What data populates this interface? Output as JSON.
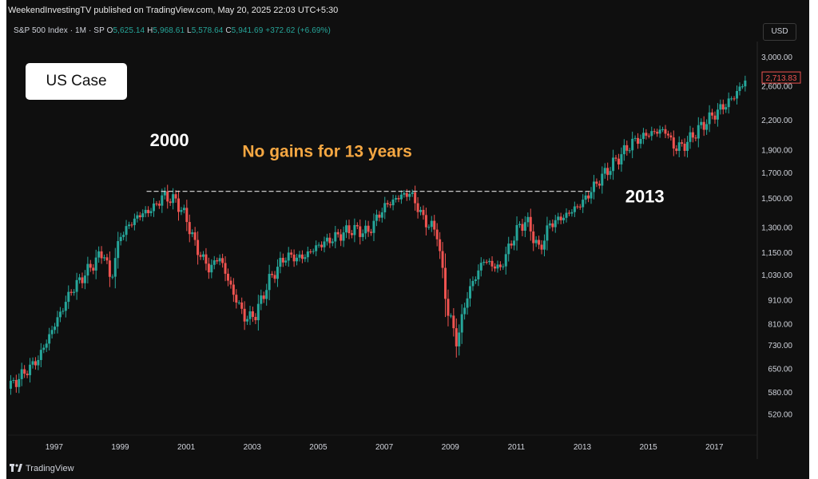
{
  "header": {
    "publisher": "WeekendInvestingTV published on TradingView.com, May 20, 2025 22:03 UTC+5:30",
    "symbol": "S&P 500 Index · 1M · SP",
    "ohlc": {
      "o_label": "O",
      "o": "5,625.14",
      "h_label": "H",
      "h": "5,968.61",
      "l_label": "L",
      "l": "5,578.64",
      "c_label": "C",
      "c": "5,941.69",
      "change": "+372.62 (+6.69%)"
    },
    "currency": "USD"
  },
  "badge": {
    "label": "US Case"
  },
  "footer": {
    "logo_text": "TradingView"
  },
  "colors": {
    "background": "#0f0f0f",
    "up": "#26a69a",
    "down": "#ef5350",
    "annotation": "#f5a742",
    "price_label": "#ef5350",
    "text": "#d1d4dc"
  },
  "chart_data": {
    "type": "candlestick",
    "title": "",
    "xlabel": "",
    "ylabel": "",
    "scale": "log",
    "ylim": [
      470,
      3200
    ],
    "xlim": [
      1995.6,
      2018.3
    ],
    "grid": false,
    "y_ticks": [
      "3,000.00",
      "2,600.00",
      "2,200.00",
      "1,900.00",
      "1,700.00",
      "1,500.00",
      "1,300.00",
      "1,150.00",
      "1,030.00",
      "910.00",
      "810.00",
      "730.00",
      "650.00",
      "580.00",
      "520.00"
    ],
    "x_ticks": [
      "1997",
      "1999",
      "2001",
      "2003",
      "2005",
      "2007",
      "2009",
      "2011",
      "2013",
      "2015",
      "2017"
    ],
    "last_price_label": "2,713.83",
    "last_price": 2713.83,
    "annotations": [
      {
        "text": "2000",
        "x": 1999.9,
        "y": 1940
      },
      {
        "text": "No gains for 13 years",
        "x": 2002.7,
        "y": 1840
      },
      {
        "text": "2013",
        "x": 2014.3,
        "y": 1470
      }
    ],
    "resistance_line": {
      "y": 1553,
      "x_start": 1999.8,
      "x_end": 2013.3
    },
    "anchors": [
      [
        1995.6,
        590
      ],
      [
        1996.5,
        680
      ],
      [
        1997.5,
        950
      ],
      [
        1998.5,
        1160
      ],
      [
        1998.7,
        1000
      ],
      [
        1999.0,
        1250
      ],
      [
        1999.5,
        1370
      ],
      [
        2000.0,
        1430
      ],
      [
        2000.3,
        1520
      ],
      [
        2000.7,
        1480
      ],
      [
        2001.0,
        1360
      ],
      [
        2001.3,
        1180
      ],
      [
        2001.7,
        1060
      ],
      [
        2002.0,
        1130
      ],
      [
        2002.4,
        950
      ],
      [
        2002.8,
        830
      ],
      [
        2003.1,
        850
      ],
      [
        2003.5,
        1000
      ],
      [
        2004.0,
        1130
      ],
      [
        2004.5,
        1120
      ],
      [
        2005.0,
        1190
      ],
      [
        2006.0,
        1290
      ],
      [
        2006.5,
        1270
      ],
      [
        2007.0,
        1440
      ],
      [
        2007.5,
        1520
      ],
      [
        2007.8,
        1540
      ],
      [
        2008.2,
        1350
      ],
      [
        2008.6,
        1270
      ],
      [
        2008.9,
        880
      ],
      [
        2009.2,
        740
      ],
      [
        2009.5,
        930
      ],
      [
        2010.0,
        1110
      ],
      [
        2010.5,
        1060
      ],
      [
        2011.0,
        1280
      ],
      [
        2011.3,
        1350
      ],
      [
        2011.7,
        1160
      ],
      [
        2012.0,
        1320
      ],
      [
        2012.5,
        1380
      ],
      [
        2013.0,
        1470
      ],
      [
        2013.5,
        1640
      ],
      [
        2014.0,
        1800
      ],
      [
        2014.5,
        1970
      ],
      [
        2015.0,
        2060
      ],
      [
        2015.5,
        2100
      ],
      [
        2015.8,
        1920
      ],
      [
        2016.1,
        1950
      ],
      [
        2016.5,
        2100
      ],
      [
        2017.0,
        2270
      ],
      [
        2017.5,
        2430
      ],
      [
        2018.0,
        2710
      ]
    ]
  }
}
